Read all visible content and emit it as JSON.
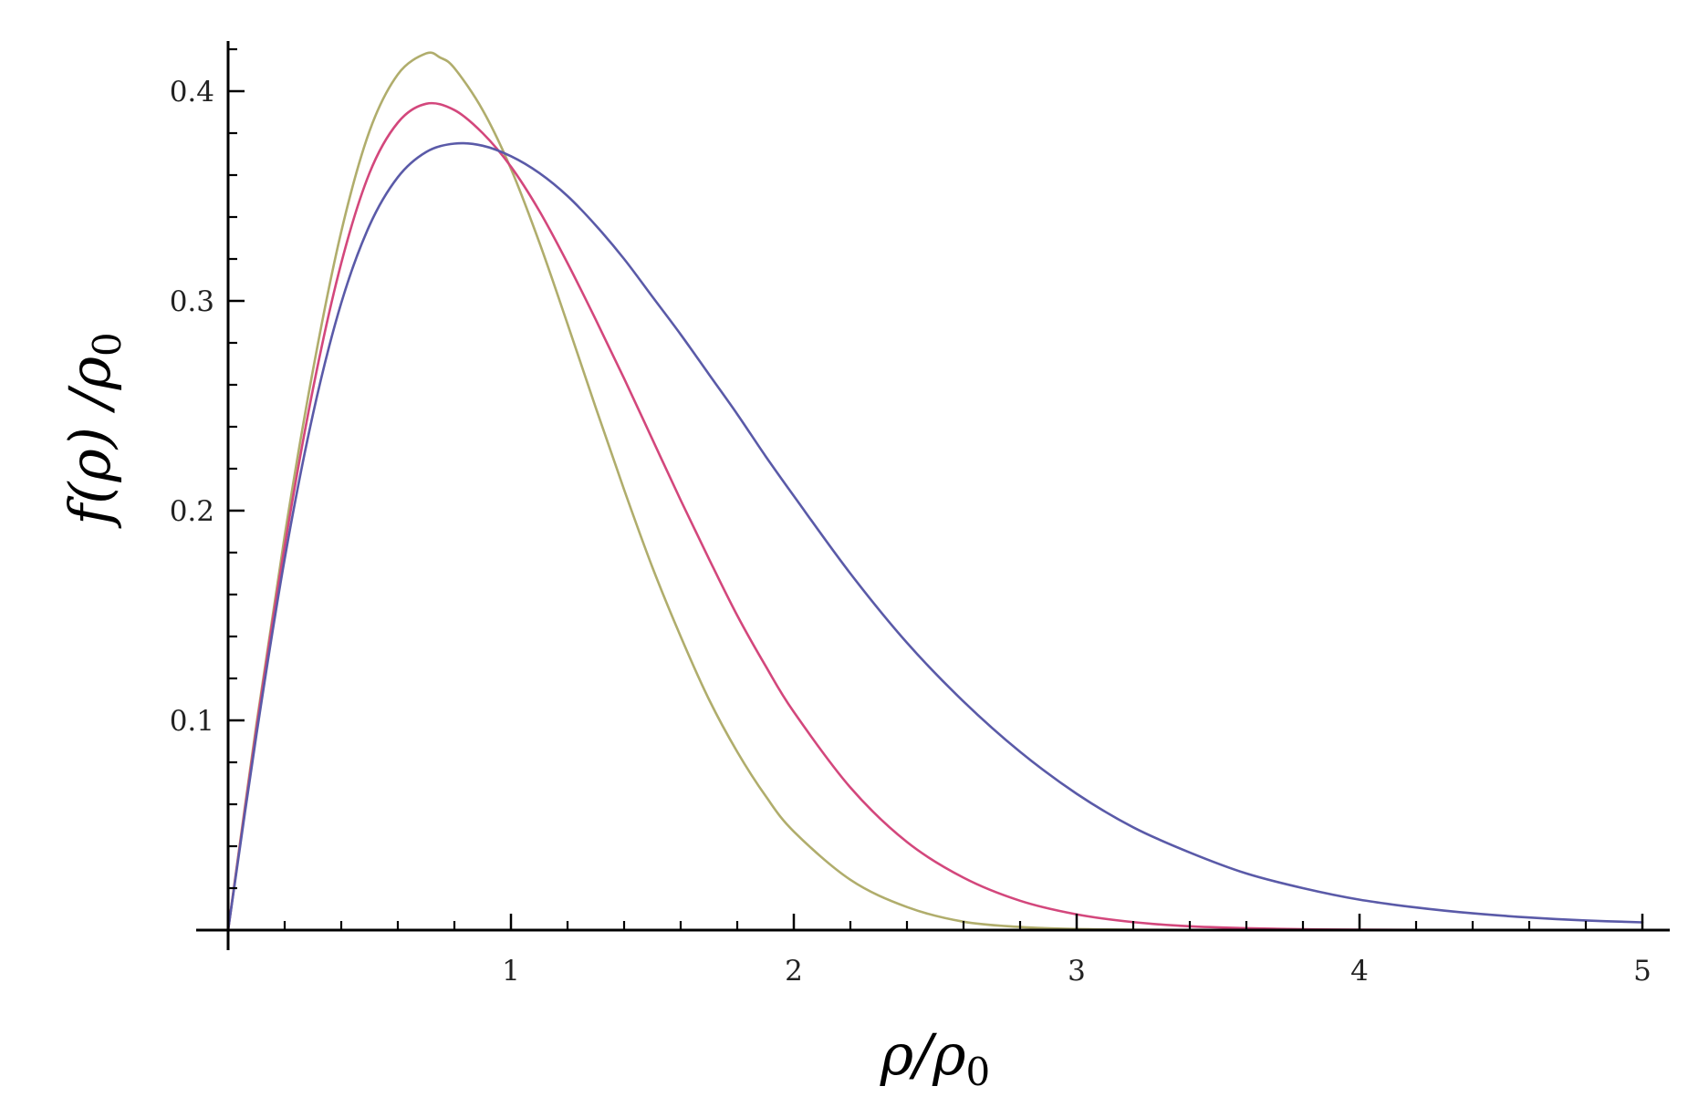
{
  "chart_data": {
    "type": "line",
    "title": "",
    "xlabel": {
      "main": "ρ/ρ",
      "sub": "0"
    },
    "ylabel": {
      "main": "f(ρ) /ρ",
      "sub": "0"
    },
    "xlim": [
      0,
      5
    ],
    "ylim": [
      0,
      0.42
    ],
    "grid": false,
    "legend": "none",
    "x_major_ticks": [
      1,
      2,
      3,
      4,
      5
    ],
    "x_tick_labels": [
      "1",
      "2",
      "3",
      "4",
      "5"
    ],
    "x_minor_step": 0.2,
    "y_major_ticks": [
      0.1,
      0.2,
      0.3,
      0.4
    ],
    "y_tick_labels": [
      "0.1",
      "0.2",
      "0.3",
      "0.4"
    ],
    "y_minor_step": 0.02,
    "colors": {
      "axis": "#000000",
      "series_1": "#b0ad6c",
      "series_2": "#d3477c",
      "series_3": "#5a5aa8"
    },
    "series": [
      {
        "color": "#b0ad6c",
        "x": [
          0,
          0.1,
          0.2,
          0.3,
          0.4,
          0.5,
          0.6,
          0.7,
          0.75,
          0.8,
          0.9,
          1.0,
          1.1,
          1.2,
          1.3,
          1.4,
          1.5,
          1.6,
          1.7,
          1.8,
          1.9,
          2.0,
          2.2,
          2.4,
          2.6,
          2.8,
          3.0,
          3.2,
          3.5,
          4.0,
          4.5,
          5.0
        ],
        "y": [
          0,
          0.098,
          0.188,
          0.267,
          0.333,
          0.381,
          0.408,
          0.418,
          0.416,
          0.411,
          0.391,
          0.363,
          0.328,
          0.289,
          0.249,
          0.21,
          0.173,
          0.14,
          0.11,
          0.085,
          0.064,
          0.047,
          0.024,
          0.011,
          0.004,
          0.0015,
          0.0005,
          0.0002,
          0.0,
          0.0,
          0.0,
          0.0
        ]
      },
      {
        "color": "#d3477c",
        "x": [
          0,
          0.1,
          0.2,
          0.3,
          0.4,
          0.5,
          0.6,
          0.7,
          0.8,
          0.9,
          1.0,
          1.1,
          1.2,
          1.3,
          1.4,
          1.5,
          1.6,
          1.7,
          1.8,
          1.9,
          2.0,
          2.2,
          2.4,
          2.6,
          2.8,
          3.0,
          3.2,
          3.4,
          3.6,
          3.8,
          4.0,
          4.5,
          5.0
        ],
        "y": [
          0,
          0.096,
          0.183,
          0.258,
          0.318,
          0.361,
          0.385,
          0.394,
          0.391,
          0.38,
          0.364,
          0.343,
          0.318,
          0.291,
          0.263,
          0.234,
          0.205,
          0.177,
          0.15,
          0.126,
          0.104,
          0.068,
          0.042,
          0.025,
          0.014,
          0.0075,
          0.0038,
          0.0018,
          0.0009,
          0.0004,
          0.0002,
          0.0,
          0.0
        ]
      },
      {
        "color": "#5a5aa8",
        "x": [
          0,
          0.1,
          0.2,
          0.3,
          0.4,
          0.5,
          0.6,
          0.7,
          0.8,
          0.9,
          1.0,
          1.1,
          1.2,
          1.3,
          1.4,
          1.5,
          1.6,
          1.7,
          1.8,
          1.9,
          2.0,
          2.2,
          2.4,
          2.6,
          2.8,
          3.0,
          3.2,
          3.4,
          3.6,
          3.8,
          4.0,
          4.2,
          4.4,
          4.6,
          4.8,
          5.0
        ],
        "y": [
          0,
          0.093,
          0.177,
          0.246,
          0.299,
          0.336,
          0.359,
          0.371,
          0.375,
          0.374,
          0.369,
          0.361,
          0.35,
          0.336,
          0.32,
          0.302,
          0.284,
          0.265,
          0.246,
          0.226,
          0.207,
          0.17,
          0.137,
          0.109,
          0.085,
          0.065,
          0.049,
          0.037,
          0.027,
          0.02,
          0.0145,
          0.0108,
          0.008,
          0.006,
          0.0046,
          0.0037
        ]
      }
    ]
  }
}
